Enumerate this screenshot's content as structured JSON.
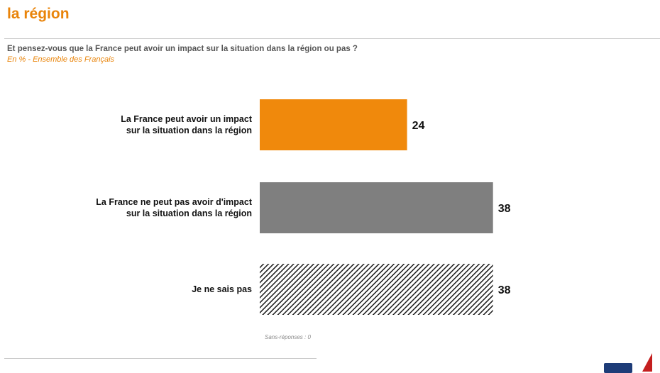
{
  "header": {
    "title_line2": "la région"
  },
  "question": "Et pensez-vous que la France peut avoir un impact sur la situation dans la région ou pas ?",
  "subtitle": "En % - Ensemble des Français",
  "note": "Sans-réponses : 0",
  "colors": {
    "accent": "#e9840a",
    "bar_orange": "#f0890c",
    "bar_grey": "#7f7f7f",
    "hatch": "#1a1a1a"
  },
  "chart_data": {
    "type": "bar",
    "orientation": "horizontal",
    "categories": [
      [
        "La France peut avoir un impact",
        "sur la situation dans la région"
      ],
      [
        "La France ne peut pas avoir d'impact",
        "sur la situation dans la région"
      ],
      [
        "Je ne sais pas"
      ]
    ],
    "values": [
      24,
      38,
      38
    ],
    "value_labels": [
      "24",
      "38",
      "38"
    ],
    "bar_styles": [
      "orange",
      "grey",
      "hatched"
    ],
    "xlim": [
      0,
      100
    ],
    "grid": false,
    "legend": "none"
  }
}
